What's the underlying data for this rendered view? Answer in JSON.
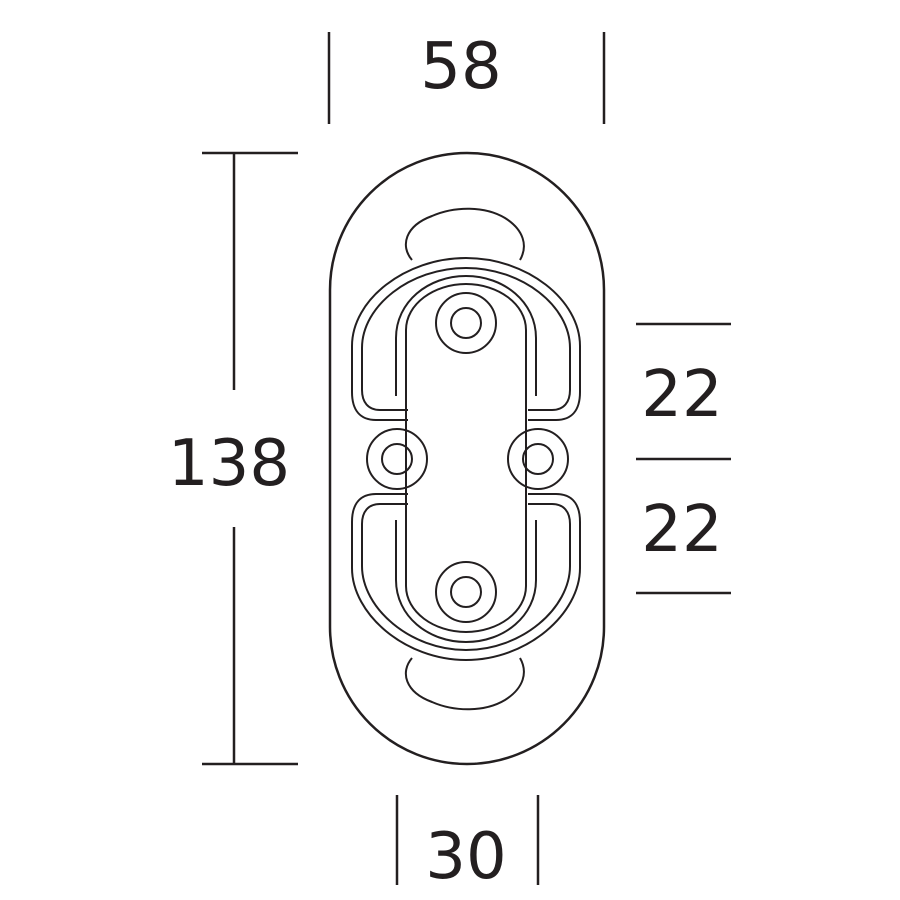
{
  "dimensions": {
    "top_width": "58",
    "height": "138",
    "upper_spacing": "22",
    "lower_spacing": "22",
    "bottom_width": "30"
  },
  "colors": {
    "ink": "#231f20",
    "background": "#ffffff"
  }
}
